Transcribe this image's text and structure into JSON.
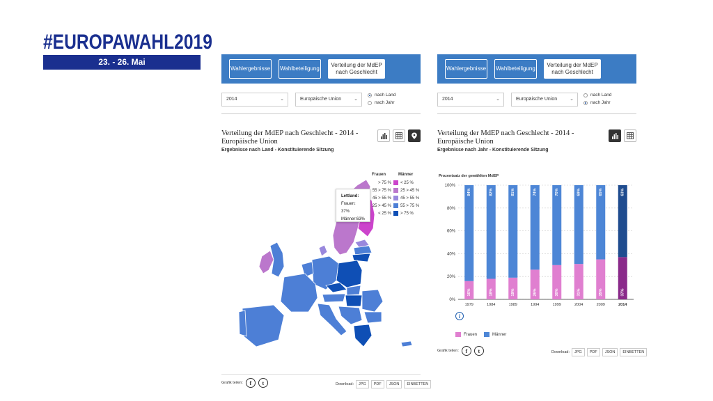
{
  "brand": {
    "title": "#EUROPAWAHL2019",
    "dates": "23. - 26. Mai"
  },
  "tabs": [
    "Wahlergebnisse",
    "Wahlbeteiligung",
    "Verteilung der MdEP nach Geschlecht"
  ],
  "panel1": {
    "year_select": "2014",
    "region_select": "Europäische Union",
    "radio": [
      {
        "label": "nach Land",
        "checked": true
      },
      {
        "label": "nach Jahr",
        "checked": false
      }
    ],
    "title": "Verteilung der MdEP nach Geschlecht - 2014 - Europäische Union",
    "subtitle": "Ergebnisse nach Land - Konstituierende Sitzung",
    "legend": {
      "head_women": "Frauen",
      "head_men": "Männer",
      "rows": [
        {
          "w": "> 75 %",
          "m": "< 25 %",
          "color": "#cc44cc"
        },
        {
          "w": "55 > 75 %",
          "m": "25 > 45 %",
          "color": "#bb77cc"
        },
        {
          "w": "45 > 55 %",
          "m": "45 > 55 %",
          "color": "#9988dd"
        },
        {
          "w": "25 > 45 %",
          "m": "55 > 75 %",
          "color": "#4d7fd6"
        },
        {
          "w": "< 25 %",
          "m": "> 75 %",
          "color": "#0f4fb5"
        }
      ]
    },
    "tooltip": {
      "country": "Lettland:",
      "women": "Frauen: 37%",
      "men": "Männer:63%"
    },
    "share_label": "Grafik teilen:",
    "download_label": "Download:",
    "downloads": [
      "JPG",
      "PDF",
      "JSON",
      "EINBETTEN"
    ]
  },
  "panel2": {
    "year_select": "2014",
    "region_select": "Europäische Union",
    "radio": [
      {
        "label": "nach Land",
        "checked": false
      },
      {
        "label": "nach Jahr",
        "checked": true
      }
    ],
    "title": "Verteilung der MdEP nach Geschlecht - 2014 - Europäische Union",
    "subtitle": "Ergebnisse nach Jahr - Konstituierende Sitzung",
    "share_label": "Grafik teilen:",
    "download_label": "Download:",
    "downloads": [
      "JPG",
      "PDF",
      "JSON",
      "EINBETTEN"
    ],
    "info_icon": "info-icon"
  },
  "colors": {
    "accent": "#3c7cc4",
    "brand": "#1a2f8f",
    "women": "#e07fd0",
    "men": "#4d86d6",
    "women_hl": "#8a2a8a",
    "men_hl": "#1f4c8f"
  },
  "chart_data": {
    "type": "bar",
    "title": "",
    "ylabel": "Prozentsatz der gewählten MdEP",
    "categories": [
      "1979",
      "1984",
      "1989",
      "1994",
      "1999",
      "2004",
      "2009",
      "2014"
    ],
    "series": [
      {
        "name": "Frauen",
        "values": [
          16,
          18,
          19,
          26,
          30,
          31,
          35,
          37
        ],
        "labels": [
          "16%",
          "18%",
          "19%",
          "26%",
          "30%",
          "31%",
          "35%",
          "37%"
        ]
      },
      {
        "name": "Männer",
        "values": [
          84,
          82,
          81,
          74,
          70,
          69,
          65,
          63
        ],
        "labels": [
          "84%",
          "82%",
          "81%",
          "74%",
          "70%",
          "69%",
          "65%",
          "63%"
        ]
      }
    ],
    "stacked": true,
    "ylim": [
      0,
      100
    ],
    "yticks": [
      "0%",
      "20%",
      "40%",
      "60%",
      "80%",
      "100%"
    ],
    "grid": true,
    "highlight": "2014",
    "legend": [
      "Frauen",
      "Männer"
    ],
    "legend_position": "bottom-left"
  }
}
